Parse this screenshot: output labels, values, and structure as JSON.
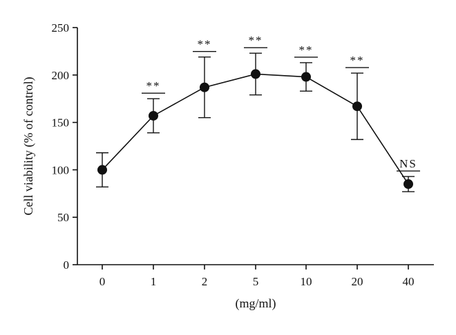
{
  "chart_data": {
    "type": "line",
    "title": "",
    "xlabel": "(mg/ml)",
    "ylabel": "Cell viability (% of control)",
    "ylim": [
      0,
      250
    ],
    "yticks": [
      0,
      50,
      100,
      150,
      200,
      250
    ],
    "categories": [
      "0",
      "1",
      "2",
      "5",
      "10",
      "20",
      "40"
    ],
    "values": [
      100,
      157,
      187,
      201,
      198,
      167,
      85
    ],
    "error": [
      18,
      18,
      32,
      22,
      15,
      35,
      8
    ],
    "significance": [
      "",
      "**",
      "**",
      "**",
      "**",
      "**",
      "NS"
    ],
    "grid": false,
    "legend": "none"
  }
}
